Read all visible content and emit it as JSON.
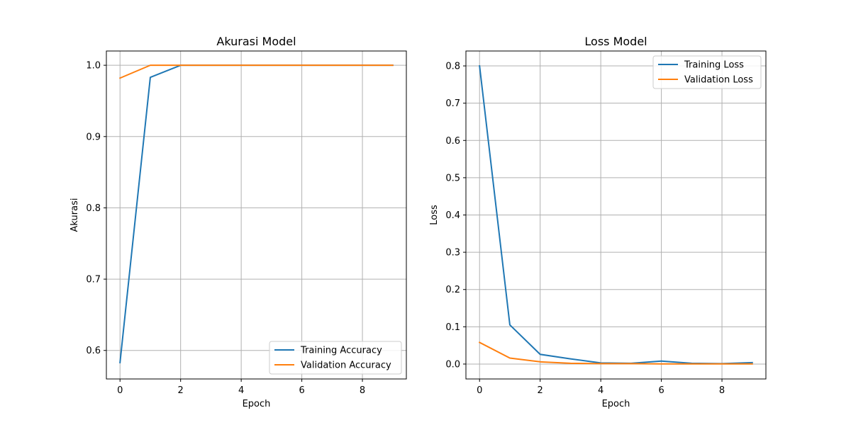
{
  "chart_data": [
    {
      "type": "line",
      "title": "Akurasi Model",
      "xlabel": "Epoch",
      "ylabel": "Akurasi",
      "x": [
        0,
        1,
        2,
        3,
        4,
        5,
        6,
        7,
        8,
        9
      ],
      "xlim": [
        -0.45,
        9.45
      ],
      "ylim": [
        0.56,
        1.02
      ],
      "xticks": [
        0,
        2,
        4,
        6,
        8
      ],
      "yticks": [
        0.6,
        0.7,
        0.8,
        0.9,
        1.0
      ],
      "grid": true,
      "legend_position": "lower-right",
      "series": [
        {
          "name": "Training Accuracy",
          "color": "#1f77b4",
          "values": [
            0.583,
            0.983,
            1.0,
            1.0,
            1.0,
            1.0,
            1.0,
            1.0,
            1.0,
            1.0
          ]
        },
        {
          "name": "Validation Accuracy",
          "color": "#ff7f0e",
          "values": [
            0.982,
            1.0,
            1.0,
            1.0,
            1.0,
            1.0,
            1.0,
            1.0,
            1.0,
            1.0
          ]
        }
      ]
    },
    {
      "type": "line",
      "title": "Loss Model",
      "xlabel": "Epoch",
      "ylabel": "Loss",
      "x": [
        0,
        1,
        2,
        3,
        4,
        5,
        6,
        7,
        8,
        9
      ],
      "xlim": [
        -0.45,
        9.45
      ],
      "ylim": [
        -0.04,
        0.84
      ],
      "xticks": [
        0,
        2,
        4,
        6,
        8
      ],
      "yticks": [
        0.0,
        0.1,
        0.2,
        0.3,
        0.4,
        0.5,
        0.6,
        0.7,
        0.8
      ],
      "grid": true,
      "legend_position": "upper-right",
      "series": [
        {
          "name": "Training Loss",
          "color": "#1f77b4",
          "values": [
            0.8,
            0.105,
            0.026,
            0.014,
            0.003,
            0.002,
            0.008,
            0.002,
            0.001,
            0.004
          ]
        },
        {
          "name": "Validation Loss",
          "color": "#ff7f0e",
          "values": [
            0.058,
            0.016,
            0.006,
            0.002,
            0.001,
            0.001,
            0.0005,
            0.0005,
            0.0005,
            0.0005
          ]
        }
      ]
    }
  ]
}
